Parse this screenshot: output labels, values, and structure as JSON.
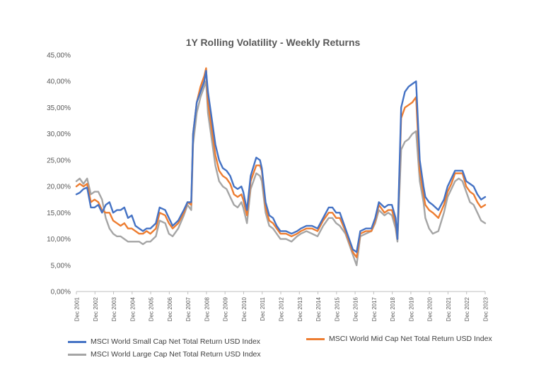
{
  "chart_data": {
    "type": "line",
    "title": "1Y Rolling Volatility - Weekly Returns",
    "x_ticks": [
      "Dec 2001",
      "Dec 2002",
      "Dec 2003",
      "Dec 2004",
      "Dec 2005",
      "Dec 2006",
      "Dec 2007",
      "Dec 2008",
      "Dec 2009",
      "Dec 2010",
      "Dec 2011",
      "Dec 2012",
      "Dec 2013",
      "Dec 2014",
      "Dec 2015",
      "Dec 2016",
      "Dec 2017",
      "Dec 2018",
      "Dec 2019",
      "Dec 2020",
      "Dec 2021",
      "Dec 2022",
      "Dec 2023"
    ],
    "y_ticks": [
      "0,00%",
      "5,00%",
      "10,00%",
      "15,00%",
      "20,00%",
      "25,00%",
      "30,00%",
      "35,00%",
      "40,00%",
      "45,00%"
    ],
    "ylim": [
      0,
      45
    ],
    "xlim": [
      2001.92,
      2023.92
    ],
    "grid": false,
    "legend_position": "bottom",
    "series": [
      {
        "name": "MSCI World Small Cap Net Total Return USD Index",
        "color": "#4472C4",
        "x": [
          2001.92,
          2002.1,
          2002.3,
          2002.5,
          2002.7,
          2002.9,
          2003.1,
          2003.3,
          2003.5,
          2003.7,
          2003.9,
          2004.1,
          2004.3,
          2004.5,
          2004.7,
          2004.9,
          2005.1,
          2005.3,
          2005.5,
          2005.7,
          2005.9,
          2006.2,
          2006.4,
          2006.7,
          2006.9,
          2007.1,
          2007.4,
          2007.7,
          2007.9,
          2008.1,
          2008.2,
          2008.4,
          2008.6,
          2008.8,
          2008.9,
          2009.0,
          2009.2,
          2009.4,
          2009.6,
          2009.8,
          2010.0,
          2010.2,
          2010.4,
          2010.6,
          2010.8,
          2010.9,
          2011.1,
          2011.3,
          2011.6,
          2011.8,
          2011.9,
          2012.1,
          2012.3,
          2012.5,
          2012.7,
          2012.9,
          2013.2,
          2013.5,
          2013.8,
          2014.0,
          2014.3,
          2014.6,
          2014.9,
          2015.2,
          2015.5,
          2015.7,
          2015.9,
          2016.1,
          2016.4,
          2016.6,
          2016.8,
          2017.0,
          2017.2,
          2017.5,
          2017.8,
          2018.0,
          2018.2,
          2018.5,
          2018.7,
          2018.9,
          2019.1,
          2019.2,
          2019.4,
          2019.6,
          2019.8,
          2020.0,
          2020.2,
          2020.4,
          2020.6,
          2020.7,
          2020.9,
          2021.1,
          2021.4,
          2021.7,
          2021.9,
          2022.1,
          2022.3,
          2022.5,
          2022.7,
          2022.9,
          2023.1,
          2023.3,
          2023.5,
          2023.7,
          2023.92
        ],
        "y": [
          18.5,
          18.8,
          19.5,
          19.8,
          16.0,
          16.0,
          16.5,
          15.0,
          16.5,
          17.0,
          15.0,
          15.5,
          15.5,
          16.0,
          14.0,
          14.5,
          12.5,
          12.0,
          11.5,
          12.0,
          12.0,
          13.0,
          16.0,
          15.5,
          14.0,
          12.5,
          13.5,
          15.5,
          17.0,
          17.0,
          30.0,
          36.0,
          38.0,
          40.0,
          42.0,
          38.0,
          33.0,
          28.0,
          25.0,
          23.5,
          23.0,
          22.0,
          20.0,
          19.5,
          20.0,
          19.0,
          15.5,
          22.0,
          25.5,
          25.0,
          23.5,
          17.0,
          14.5,
          14.0,
          12.5,
          11.5,
          11.5,
          11.0,
          11.5,
          12.0,
          12.5,
          12.5,
          12.0,
          14.0,
          16.0,
          16.0,
          15.0,
          15.0,
          12.0,
          10.0,
          8.0,
          7.5,
          11.5,
          12.0,
          12.0,
          14.0,
          17.0,
          16.0,
          16.5,
          16.5,
          14.0,
          10.0,
          35.0,
          38.0,
          39.0,
          39.5,
          40.0,
          25.0,
          20.0,
          18.0,
          17.0,
          16.5,
          15.5,
          17.5,
          20.0,
          21.5,
          23.0,
          23.0,
          23.0,
          21.0,
          20.5,
          20.0,
          18.5,
          17.5,
          18.0
        ]
      },
      {
        "name": "MSCI World Mid Cap Net Total Return USD Index",
        "color": "#ED7D31",
        "x": [
          2001.92,
          2002.1,
          2002.3,
          2002.5,
          2002.7,
          2002.9,
          2003.1,
          2003.3,
          2003.5,
          2003.7,
          2003.9,
          2004.1,
          2004.3,
          2004.5,
          2004.7,
          2004.9,
          2005.1,
          2005.3,
          2005.5,
          2005.7,
          2005.9,
          2006.2,
          2006.4,
          2006.7,
          2006.9,
          2007.1,
          2007.4,
          2007.7,
          2007.9,
          2008.1,
          2008.2,
          2008.4,
          2008.6,
          2008.8,
          2008.9,
          2009.0,
          2009.2,
          2009.4,
          2009.6,
          2009.8,
          2010.0,
          2010.2,
          2010.4,
          2010.6,
          2010.8,
          2010.9,
          2011.1,
          2011.3,
          2011.6,
          2011.8,
          2011.9,
          2012.1,
          2012.3,
          2012.5,
          2012.7,
          2012.9,
          2013.2,
          2013.5,
          2013.8,
          2014.0,
          2014.3,
          2014.6,
          2014.9,
          2015.2,
          2015.5,
          2015.7,
          2015.9,
          2016.1,
          2016.4,
          2016.6,
          2016.8,
          2017.0,
          2017.2,
          2017.5,
          2017.8,
          2018.0,
          2018.2,
          2018.5,
          2018.7,
          2018.9,
          2019.1,
          2019.2,
          2019.4,
          2019.6,
          2019.8,
          2020.0,
          2020.2,
          2020.4,
          2020.6,
          2020.7,
          2020.9,
          2021.1,
          2021.4,
          2021.7,
          2021.9,
          2022.1,
          2022.3,
          2022.5,
          2022.7,
          2022.9,
          2023.1,
          2023.3,
          2023.5,
          2023.7,
          2023.92
        ],
        "y": [
          20.0,
          20.5,
          20.0,
          20.5,
          17.0,
          17.5,
          17.0,
          15.5,
          15.0,
          15.0,
          13.5,
          13.0,
          12.5,
          13.0,
          12.0,
          12.0,
          11.5,
          11.0,
          11.0,
          11.5,
          11.0,
          12.0,
          15.0,
          14.5,
          13.0,
          12.0,
          13.0,
          15.0,
          17.0,
          16.5,
          30.0,
          36.0,
          39.0,
          41.0,
          42.5,
          36.0,
          31.0,
          26.0,
          23.0,
          22.0,
          21.5,
          20.5,
          18.5,
          18.0,
          18.5,
          17.5,
          14.5,
          21.0,
          24.0,
          24.0,
          23.0,
          16.0,
          13.5,
          13.0,
          12.0,
          11.0,
          11.0,
          10.5,
          11.0,
          11.5,
          12.0,
          12.0,
          11.5,
          13.5,
          15.0,
          15.0,
          14.0,
          14.0,
          11.5,
          9.5,
          7.5,
          6.5,
          11.0,
          11.5,
          11.5,
          13.5,
          16.5,
          15.0,
          15.5,
          15.5,
          13.0,
          10.0,
          33.0,
          35.0,
          35.5,
          36.0,
          37.0,
          23.0,
          18.5,
          16.5,
          15.5,
          15.0,
          14.0,
          16.5,
          19.0,
          20.5,
          22.5,
          22.5,
          22.5,
          20.0,
          19.0,
          18.5,
          17.0,
          16.0,
          16.5
        ]
      },
      {
        "name": "MSCI World Large Cap Net Total Return USD Index",
        "color": "#A5A5A5",
        "x": [
          2001.92,
          2002.1,
          2002.3,
          2002.5,
          2002.7,
          2002.9,
          2003.1,
          2003.3,
          2003.5,
          2003.7,
          2003.9,
          2004.1,
          2004.3,
          2004.5,
          2004.7,
          2004.9,
          2005.1,
          2005.3,
          2005.5,
          2005.7,
          2005.9,
          2006.2,
          2006.4,
          2006.7,
          2006.9,
          2007.1,
          2007.4,
          2007.7,
          2007.9,
          2008.1,
          2008.2,
          2008.4,
          2008.6,
          2008.8,
          2008.9,
          2009.0,
          2009.2,
          2009.4,
          2009.6,
          2009.8,
          2010.0,
          2010.2,
          2010.4,
          2010.6,
          2010.8,
          2010.9,
          2011.1,
          2011.3,
          2011.6,
          2011.8,
          2011.9,
          2012.1,
          2012.3,
          2012.5,
          2012.7,
          2012.9,
          2013.2,
          2013.5,
          2013.8,
          2014.0,
          2014.3,
          2014.6,
          2014.9,
          2015.2,
          2015.5,
          2015.7,
          2015.9,
          2016.1,
          2016.4,
          2016.6,
          2016.8,
          2017.0,
          2017.2,
          2017.5,
          2017.8,
          2018.0,
          2018.2,
          2018.5,
          2018.7,
          2018.9,
          2019.1,
          2019.2,
          2019.4,
          2019.6,
          2019.8,
          2020.0,
          2020.2,
          2020.4,
          2020.6,
          2020.7,
          2020.9,
          2021.1,
          2021.4,
          2021.7,
          2021.9,
          2022.1,
          2022.3,
          2022.5,
          2022.7,
          2022.9,
          2023.1,
          2023.3,
          2023.5,
          2023.7,
          2023.92
        ],
        "y": [
          21.0,
          21.5,
          20.5,
          21.5,
          18.5,
          19.0,
          19.0,
          17.5,
          14.0,
          12.0,
          11.0,
          10.5,
          10.5,
          10.0,
          9.5,
          9.5,
          9.5,
          9.5,
          9.0,
          9.5,
          9.5,
          10.5,
          13.5,
          13.0,
          11.0,
          10.5,
          12.0,
          14.5,
          16.5,
          15.5,
          28.0,
          34.0,
          37.0,
          39.0,
          40.0,
          34.0,
          29.0,
          24.0,
          21.0,
          20.0,
          19.5,
          18.0,
          16.5,
          16.0,
          17.0,
          16.0,
          13.0,
          19.5,
          22.5,
          22.0,
          21.0,
          15.0,
          12.5,
          12.0,
          11.0,
          10.0,
          10.0,
          9.5,
          10.5,
          11.0,
          11.5,
          11.0,
          10.5,
          12.5,
          14.0,
          14.0,
          13.0,
          12.5,
          11.0,
          9.0,
          7.0,
          5.0,
          10.5,
          11.0,
          11.5,
          13.0,
          15.5,
          14.5,
          15.0,
          14.5,
          12.0,
          9.5,
          27.0,
          28.5,
          29.0,
          30.0,
          30.5,
          21.0,
          17.0,
          14.0,
          12.0,
          11.0,
          11.5,
          15.0,
          18.0,
          19.5,
          21.0,
          21.5,
          21.0,
          19.0,
          17.0,
          16.5,
          15.0,
          13.5,
          13.0
        ]
      }
    ]
  }
}
